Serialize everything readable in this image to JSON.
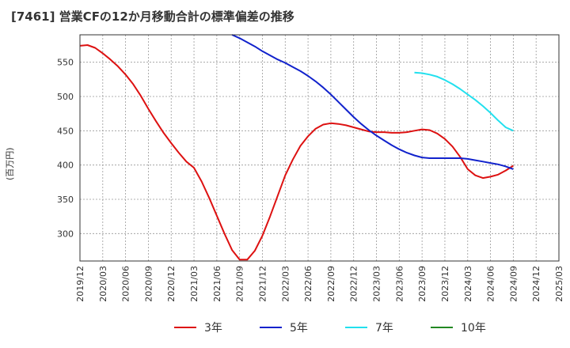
{
  "title": "[7461]  営業CFの12か月移動合計の標準偏差の推移",
  "chart_data": {
    "type": "line",
    "title": "[7461]  営業CFの12か月移動合計の標準偏差の推移",
    "xlabel": "",
    "ylabel": "(百万円)",
    "ylim": [
      260,
      590
    ],
    "yticks": [
      300,
      350,
      400,
      450,
      500,
      550
    ],
    "xticks": [
      "2019/12",
      "2020/03",
      "2020/06",
      "2020/09",
      "2020/12",
      "2021/03",
      "2021/06",
      "2021/09",
      "2021/12",
      "2022/03",
      "2022/06",
      "2022/09",
      "2022/12",
      "2023/03",
      "2023/06",
      "2023/09",
      "2023/12",
      "2024/03",
      "2024/06",
      "2024/09",
      "2024/12",
      "2025/03"
    ],
    "grid": true,
    "legend_position": "bottom",
    "series": [
      {
        "name": "3年",
        "color": "#dd1111",
        "points": [
          [
            "2019/12",
            574
          ],
          [
            "2020/01",
            575
          ],
          [
            "2020/02",
            571
          ],
          [
            "2020/03",
            563
          ],
          [
            "2020/04",
            554
          ],
          [
            "2020/05",
            544
          ],
          [
            "2020/06",
            532
          ],
          [
            "2020/07",
            518
          ],
          [
            "2020/08",
            501
          ],
          [
            "2020/09",
            482
          ],
          [
            "2020/10",
            464
          ],
          [
            "2020/11",
            447
          ],
          [
            "2020/12",
            432
          ],
          [
            "2021/01",
            418
          ],
          [
            "2021/02",
            405
          ],
          [
            "2021/03",
            396
          ],
          [
            "2021/04",
            376
          ],
          [
            "2021/05",
            352
          ],
          [
            "2021/06",
            326
          ],
          [
            "2021/07",
            300
          ],
          [
            "2021/08",
            276
          ],
          [
            "2021/09",
            262
          ],
          [
            "2021/10",
            262
          ],
          [
            "2021/11",
            275
          ],
          [
            "2021/12",
            297
          ],
          [
            "2022/01",
            325
          ],
          [
            "2022/02",
            355
          ],
          [
            "2022/03",
            385
          ],
          [
            "2022/04",
            408
          ],
          [
            "2022/05",
            428
          ],
          [
            "2022/06",
            442
          ],
          [
            "2022/07",
            453
          ],
          [
            "2022/08",
            459
          ],
          [
            "2022/09",
            461
          ],
          [
            "2022/10",
            460
          ],
          [
            "2022/11",
            458
          ],
          [
            "2022/12",
            455
          ],
          [
            "2023/01",
            452
          ],
          [
            "2023/02",
            449
          ],
          [
            "2023/03",
            448
          ],
          [
            "2023/04",
            448
          ],
          [
            "2023/05",
            447
          ],
          [
            "2023/06",
            447
          ],
          [
            "2023/07",
            448
          ],
          [
            "2023/08",
            450
          ],
          [
            "2023/09",
            452
          ],
          [
            "2023/10",
            451
          ],
          [
            "2023/11",
            446
          ],
          [
            "2023/12",
            438
          ],
          [
            "2024/01",
            427
          ],
          [
            "2024/02",
            412
          ],
          [
            "2024/03",
            394
          ],
          [
            "2024/04",
            385
          ],
          [
            "2024/05",
            381
          ],
          [
            "2024/06",
            383
          ],
          [
            "2024/07",
            386
          ],
          [
            "2024/08",
            392
          ],
          [
            "2024/09",
            399
          ]
        ]
      },
      {
        "name": "5年",
        "color": "#1122cc",
        "points": [
          [
            "2021/08",
            590
          ],
          [
            "2021/09",
            585
          ],
          [
            "2021/10",
            579
          ],
          [
            "2021/11",
            573
          ],
          [
            "2021/12",
            566
          ],
          [
            "2022/01",
            560
          ],
          [
            "2022/02",
            554
          ],
          [
            "2022/03",
            549
          ],
          [
            "2022/04",
            543
          ],
          [
            "2022/05",
            537
          ],
          [
            "2022/06",
            530
          ],
          [
            "2022/07",
            522
          ],
          [
            "2022/08",
            513
          ],
          [
            "2022/09",
            503
          ],
          [
            "2022/10",
            492
          ],
          [
            "2022/11",
            481
          ],
          [
            "2022/12",
            470
          ],
          [
            "2023/01",
            460
          ],
          [
            "2023/02",
            451
          ],
          [
            "2023/03",
            443
          ],
          [
            "2023/04",
            436
          ],
          [
            "2023/05",
            429
          ],
          [
            "2023/06",
            423
          ],
          [
            "2023/07",
            418
          ],
          [
            "2023/08",
            414
          ],
          [
            "2023/09",
            411
          ],
          [
            "2023/10",
            410
          ],
          [
            "2023/11",
            410
          ],
          [
            "2023/12",
            410
          ],
          [
            "2024/01",
            410
          ],
          [
            "2024/02",
            410
          ],
          [
            "2024/03",
            409
          ],
          [
            "2024/04",
            407
          ],
          [
            "2024/05",
            405
          ],
          [
            "2024/06",
            403
          ],
          [
            "2024/07",
            401
          ],
          [
            "2024/08",
            398
          ],
          [
            "2024/09",
            394
          ]
        ]
      },
      {
        "name": "7年",
        "color": "#22e0ee",
        "points": [
          [
            "2023/08",
            535
          ],
          [
            "2023/09",
            534
          ],
          [
            "2023/10",
            532
          ],
          [
            "2023/11",
            529
          ],
          [
            "2023/12",
            524
          ],
          [
            "2024/01",
            518
          ],
          [
            "2024/02",
            511
          ],
          [
            "2024/03",
            503
          ],
          [
            "2024/04",
            495
          ],
          [
            "2024/05",
            486
          ],
          [
            "2024/06",
            476
          ],
          [
            "2024/07",
            465
          ],
          [
            "2024/08",
            455
          ],
          [
            "2024/09",
            450
          ]
        ]
      },
      {
        "name": "10年",
        "color": "#228822",
        "points": []
      }
    ]
  }
}
